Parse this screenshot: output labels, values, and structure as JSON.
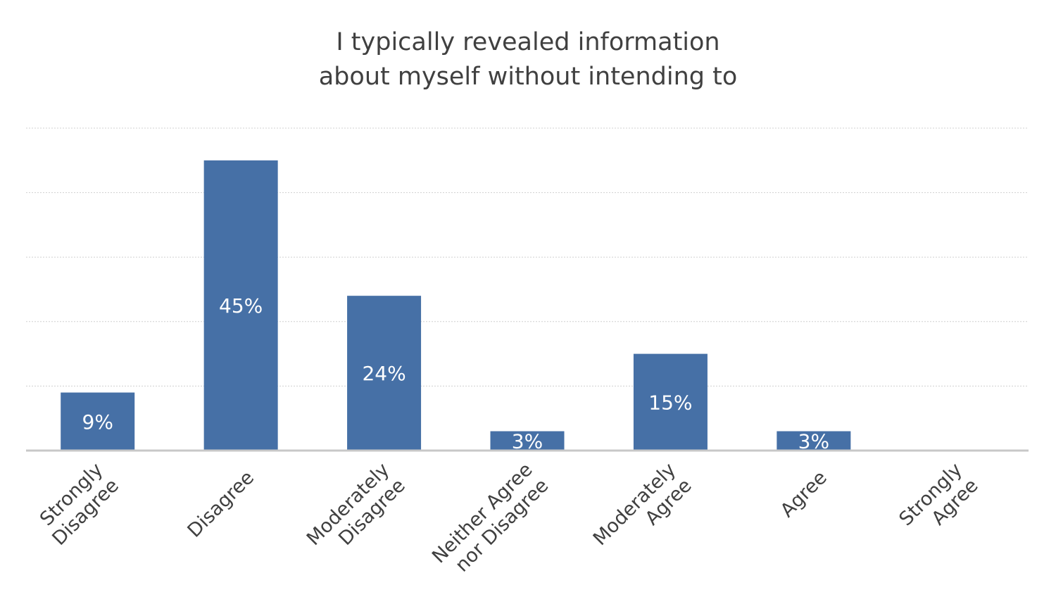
{
  "chart_data": {
    "type": "bar",
    "title_lines": [
      "I typically revealed information",
      "about myself without intending to"
    ],
    "categories": [
      [
        "Strongly",
        "Disagree"
      ],
      [
        "Disagree"
      ],
      [
        "Moderately",
        "Disagree"
      ],
      [
        "Neither Agree",
        "nor Disagree"
      ],
      [
        "Moderately",
        "Agree"
      ],
      [
        "Agree"
      ],
      [
        "Strongly",
        "Agree"
      ]
    ],
    "values": [
      9,
      45,
      24,
      3,
      15,
      3,
      null
    ],
    "data_labels": [
      "9%",
      "45%",
      "24%",
      "3%",
      "15%",
      "3%",
      ""
    ],
    "value_unit": "%",
    "ylim": [
      0,
      50
    ],
    "grid": true,
    "legend": "none",
    "colors": {
      "bar": "#4670a6",
      "title": "#404040",
      "label": "#404040",
      "grid": "#d0d0d0",
      "axis": "#c8c8c8"
    }
  }
}
